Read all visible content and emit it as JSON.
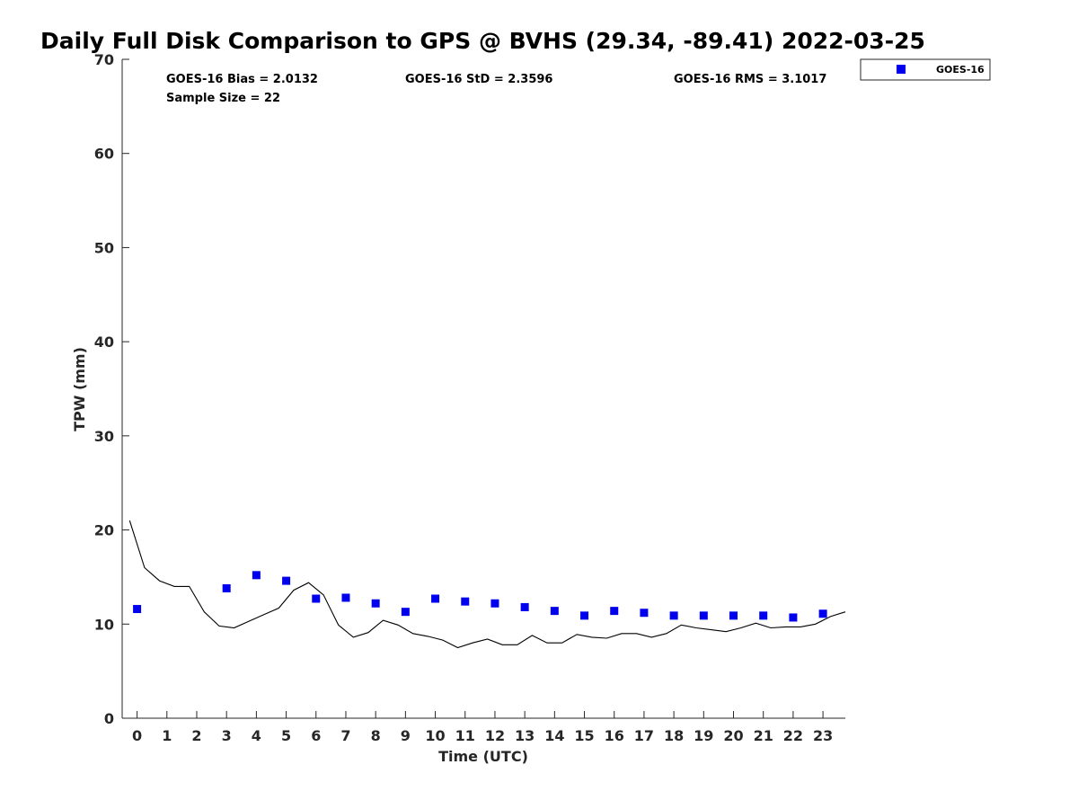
{
  "chart_data": {
    "type": "scatter",
    "title": "Daily Full Disk Comparison to GPS @ BVHS (29.34, -89.41) 2022-03-25",
    "xlabel": "Time (UTC)",
    "ylabel": "TPW (mm)",
    "xlim": [
      -0.5,
      23.75
    ],
    "ylim": [
      0,
      70
    ],
    "x_ticks": [
      "0",
      "1",
      "2",
      "3",
      "4",
      "5",
      "6",
      "7",
      "8",
      "9",
      "10",
      "11",
      "12",
      "13",
      "14",
      "15",
      "16",
      "17",
      "18",
      "19",
      "20",
      "21",
      "22",
      "23"
    ],
    "y_ticks": [
      "0",
      "10",
      "20",
      "30",
      "40",
      "50",
      "60",
      "70"
    ],
    "grid": false,
    "legend_position": "top-right (outside)",
    "stats": {
      "bias": "GOES-16 Bias = 2.0132",
      "std": "GOES-16 StD = 2.3596",
      "rms": "GOES-16 RMS = 3.1017",
      "sample": "Sample Size = 22"
    },
    "series": [
      {
        "name": "GOES-16",
        "kind": "scatter",
        "marker": "square",
        "color": "#0000ee",
        "x": [
          0,
          3,
          4,
          5,
          6,
          7,
          8,
          9,
          10,
          11,
          12,
          13,
          14,
          15,
          16,
          17,
          18,
          19,
          20,
          21,
          22,
          23
        ],
        "y": [
          11.6,
          13.8,
          15.2,
          14.6,
          12.7,
          12.8,
          12.2,
          11.3,
          12.7,
          12.4,
          12.2,
          11.8,
          11.4,
          10.9,
          11.4,
          11.2,
          10.9,
          10.9,
          10.9,
          10.9,
          10.7,
          11.1
        ]
      },
      {
        "kind": "line",
        "color": "#000000",
        "x": [
          -0.25,
          0.25,
          0.75,
          1.25,
          1.75,
          2.25,
          2.75,
          3.25,
          3.75,
          4.25,
          4.75,
          5.25,
          5.75,
          6.25,
          6.75,
          7.25,
          7.75,
          8.25,
          8.75,
          9.25,
          9.75,
          10.25,
          10.75,
          11.25,
          11.75,
          12.25,
          12.75,
          13.25,
          13.75,
          14.25,
          14.75,
          15.25,
          15.75,
          16.25,
          16.75,
          17.25,
          17.75,
          18.25,
          18.75,
          19.25,
          19.75,
          20.25,
          20.75,
          21.25,
          21.75,
          22.25,
          22.75,
          23.25,
          23.75
        ],
        "y": [
          21.0,
          16.0,
          14.6,
          14.0,
          14.0,
          11.3,
          9.8,
          9.6,
          10.3,
          11.0,
          11.7,
          13.6,
          14.4,
          13.1,
          9.9,
          8.6,
          9.1,
          10.4,
          9.9,
          9.0,
          8.7,
          8.3,
          7.5,
          8.0,
          8.4,
          7.8,
          7.8,
          8.8,
          8.0,
          8.0,
          8.9,
          8.6,
          8.5,
          9.0,
          9.0,
          8.6,
          9.0,
          9.9,
          9.6,
          9.4,
          9.2,
          9.6,
          10.1,
          9.6,
          9.7,
          9.7,
          10.0,
          10.8,
          11.3
        ]
      }
    ]
  }
}
